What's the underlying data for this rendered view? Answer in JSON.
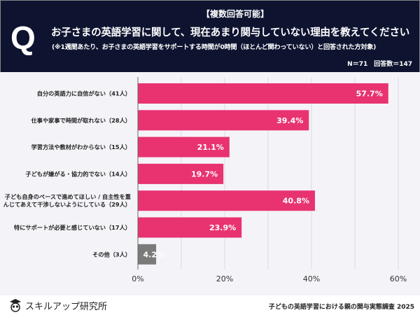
{
  "header": {
    "q_mark": "Q",
    "tag": "【複数回答可能】",
    "title": "お子さまの英語学習に関して、現在あまり関与していない理由を教えてください",
    "note": "(※1週間あたり、お子さまの英語学習をサポートする時間が0時間（ほとんど関わっていない）と回答された方対象)",
    "sample": "N＝71　回答数＝147"
  },
  "footer": {
    "logo": "スキルアップ研究所",
    "source": "子どもの英語学習における親の関与実態調査 2025"
  },
  "colors": {
    "bar": "#e83370",
    "other": "#7a7a7a",
    "header": "#0e1430"
  },
  "chart_data": {
    "type": "bar",
    "orientation": "horizontal",
    "categories": [
      [
        "自分の英語力に自信がない（41人）"
      ],
      [
        "仕事や家事で時間が取れない（28人）"
      ],
      [
        "学習方法や教材がわからない（15人）"
      ],
      [
        "子どもが嫌がる・協力的でない（14人）"
      ],
      [
        "子ども自身のペースで進めてほしい / 自主性を重",
        "んじてあえて干渉しないようにしている（29人）"
      ],
      [
        "特にサポートが必要と感じていない（17人）"
      ],
      [
        "その他（3人）"
      ]
    ],
    "values": [
      57.7,
      39.4,
      21.1,
      19.7,
      40.8,
      23.9,
      4.2
    ],
    "value_labels": [
      "57.7%",
      "39.4%",
      "21.1%",
      "19.7%",
      "40.8%",
      "23.9%",
      "4.2%"
    ],
    "xlim": [
      0,
      60
    ],
    "xticks": [
      0,
      20,
      40,
      60
    ],
    "xtick_labels": [
      "0%",
      "20%",
      "40%",
      "60%"
    ],
    "grid": true
  }
}
